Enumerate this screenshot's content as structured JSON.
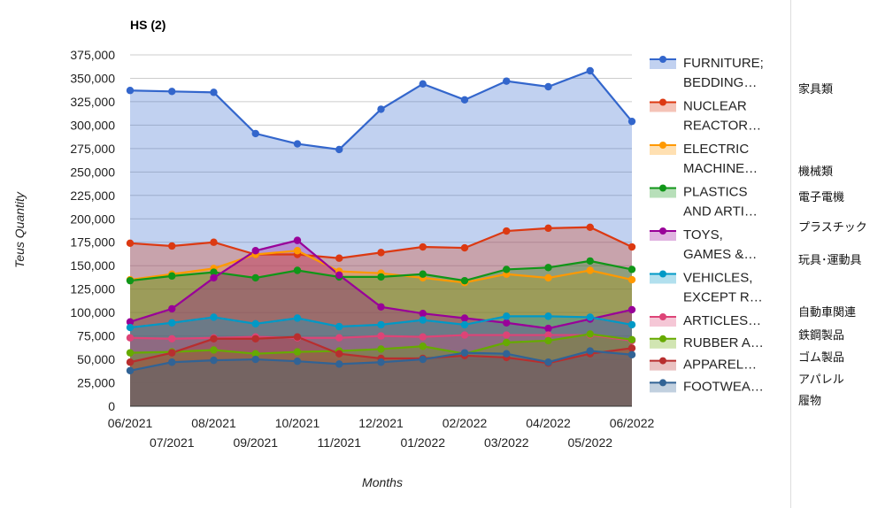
{
  "chart_data": {
    "type": "area",
    "title": "HS (2)",
    "xlabel": "Months",
    "ylabel": "Teus Quantity",
    "ylim": [
      0,
      375000
    ],
    "yticks": [
      0,
      25000,
      50000,
      75000,
      100000,
      125000,
      150000,
      175000,
      200000,
      225000,
      250000,
      275000,
      300000,
      325000,
      350000,
      375000
    ],
    "ytick_labels": [
      "0",
      "25,000",
      "50,000",
      "75,000",
      "100,000",
      "125,000",
      "150,000",
      "175,000",
      "200,000",
      "225,000",
      "250,000",
      "275,000",
      "300,000",
      "325,000",
      "350,000",
      "375,000"
    ],
    "categories": [
      "06/2021",
      "07/2021",
      "08/2021",
      "09/2021",
      "10/2021",
      "11/2021",
      "12/2021",
      "01/2022",
      "02/2022",
      "03/2022",
      "04/2022",
      "05/2022",
      "06/2022"
    ],
    "grid": true,
    "legend_position": "right",
    "series": [
      {
        "name": "FURNITURE; BEDDING...",
        "legend_lines": [
          "FURNITURE;",
          "BEDDING…"
        ],
        "color": "#3366cc",
        "values": [
          337000,
          336000,
          335000,
          291000,
          280000,
          274000,
          317000,
          344000,
          327000,
          347000,
          341000,
          358000,
          304000
        ]
      },
      {
        "name": "NUCLEAR REACTOR...",
        "legend_lines": [
          "NUCLEAR",
          "REACTOR…"
        ],
        "color": "#dc3912",
        "values": [
          174000,
          171000,
          175000,
          162000,
          162000,
          158000,
          164000,
          170000,
          169000,
          187000,
          190000,
          191000,
          170000
        ]
      },
      {
        "name": "ELECTRIC MACHINE...",
        "legend_lines": [
          "ELECTRIC",
          "MACHINE…"
        ],
        "color": "#ff9900",
        "values": [
          135000,
          141000,
          147000,
          162000,
          166000,
          144000,
          142000,
          137000,
          132000,
          141000,
          137000,
          145000,
          135000
        ]
      },
      {
        "name": "PLASTICS AND ARTI...",
        "legend_lines": [
          "PLASTICS",
          "AND ARTI…"
        ],
        "color": "#109618",
        "values": [
          134000,
          139000,
          143000,
          137000,
          145000,
          138000,
          138000,
          141000,
          134000,
          146000,
          148000,
          155000,
          146000
        ]
      },
      {
        "name": "TOYS, GAMES &...",
        "legend_lines": [
          "TOYS,",
          "GAMES &…"
        ],
        "color": "#990099",
        "values": [
          90000,
          104000,
          137000,
          166000,
          177000,
          140000,
          106000,
          99000,
          94000,
          89000,
          83000,
          93000,
          103000
        ]
      },
      {
        "name": "VEHICLES, EXCEPT R...",
        "legend_lines": [
          "VEHICLES,",
          "EXCEPT R…"
        ],
        "color": "#0099c6",
        "values": [
          84000,
          89000,
          95000,
          88000,
          94000,
          85000,
          87000,
          92000,
          87000,
          96000,
          96000,
          95000,
          87000
        ]
      },
      {
        "name": "ARTICLES...",
        "legend_lines": [
          "ARTICLES…"
        ],
        "color": "#dd4477",
        "values": [
          73000,
          72000,
          73000,
          74000,
          73000,
          73000,
          75000,
          74000,
          76000,
          76000,
          76000,
          76000,
          70000
        ]
      },
      {
        "name": "RUBBER A...",
        "legend_lines": [
          "RUBBER A…"
        ],
        "color": "#66aa00",
        "values": [
          57000,
          58000,
          60000,
          56000,
          58000,
          59000,
          61000,
          64000,
          56000,
          68000,
          70000,
          77000,
          71000
        ]
      },
      {
        "name": "APPAREL...",
        "legend_lines": [
          "APPAREL…"
        ],
        "color": "#b82e2e",
        "values": [
          47000,
          57000,
          72000,
          72000,
          74000,
          56000,
          51000,
          51000,
          54000,
          52000,
          46000,
          56000,
          62000
        ]
      },
      {
        "name": "FOOTWEA...",
        "legend_lines": [
          "FOOTWEA…"
        ],
        "color": "#316395",
        "values": [
          38000,
          47000,
          49000,
          50000,
          48000,
          45000,
          47000,
          50000,
          57000,
          56000,
          47000,
          59000,
          55000
        ]
      }
    ]
  },
  "annotations": [
    {
      "text": "家具類",
      "row": 0
    },
    {
      "text": "機械類",
      "row": 1
    },
    {
      "text": "電子電機",
      "row": 2
    },
    {
      "text": "プラスチック",
      "row": 3
    },
    {
      "text": "玩具･運動具",
      "row": 4
    },
    {
      "text": "自動車関連",
      "row": 5
    },
    {
      "text": "鉄鋼製品",
      "row": 6
    },
    {
      "text": "ゴム製品",
      "row": 7
    },
    {
      "text": "アパレル",
      "row": 8
    },
    {
      "text": "履物",
      "row": 9
    }
  ]
}
